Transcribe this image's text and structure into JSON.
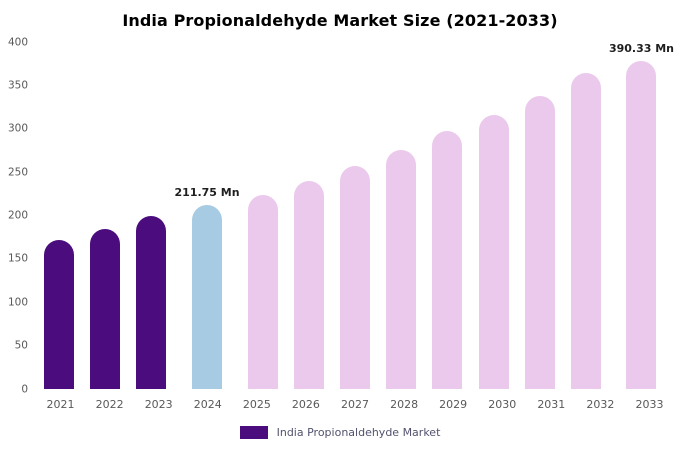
{
  "title": "India Propionaldehyde Market Size (2021-2033)",
  "legend": {
    "label": "India Propionaldehyde Market",
    "swatch_color": "#4b0d7e"
  },
  "colors": {
    "historical_bar": "#4b0d7e",
    "current_year_bar": "#a6cbe2",
    "forecast_bar": "#ebc9ec",
    "tick_text": "#595959",
    "annotation_text": "#1f1f1f",
    "background": "#ffffff"
  },
  "chart_data": {
    "type": "bar",
    "title": "India Propionaldehyde Market Size (2021-2033)",
    "xlabel": "",
    "ylabel": "",
    "unit": "Mn",
    "grid": false,
    "legend_position": "bottom",
    "ylim": [
      0,
      400
    ],
    "yticks": [
      0,
      50,
      100,
      150,
      200,
      250,
      300,
      350,
      400
    ],
    "categories": [
      "2021",
      "2022",
      "2023",
      "2024",
      "2025",
      "2026",
      "2027",
      "2028",
      "2029",
      "2030",
      "2031",
      "2032",
      "2033"
    ],
    "values": [
      172,
      184,
      199,
      211.75,
      224,
      240,
      257,
      276,
      297,
      316,
      338,
      364,
      390.33
    ],
    "bar_colors": [
      "#4b0d7e",
      "#4b0d7e",
      "#4b0d7e",
      "#a6cbe2",
      "#ebc9ec",
      "#ebc9ec",
      "#ebc9ec",
      "#ebc9ec",
      "#ebc9ec",
      "#ebc9ec",
      "#ebc9ec",
      "#ebc9ec",
      "#ebc9ec"
    ],
    "annotations": [
      {
        "category": "2024",
        "text": "211.75 Mn"
      },
      {
        "category": "2033",
        "text": "390.33 Mn"
      }
    ],
    "legend_entries": [
      "India Propionaldehyde Market"
    ]
  }
}
